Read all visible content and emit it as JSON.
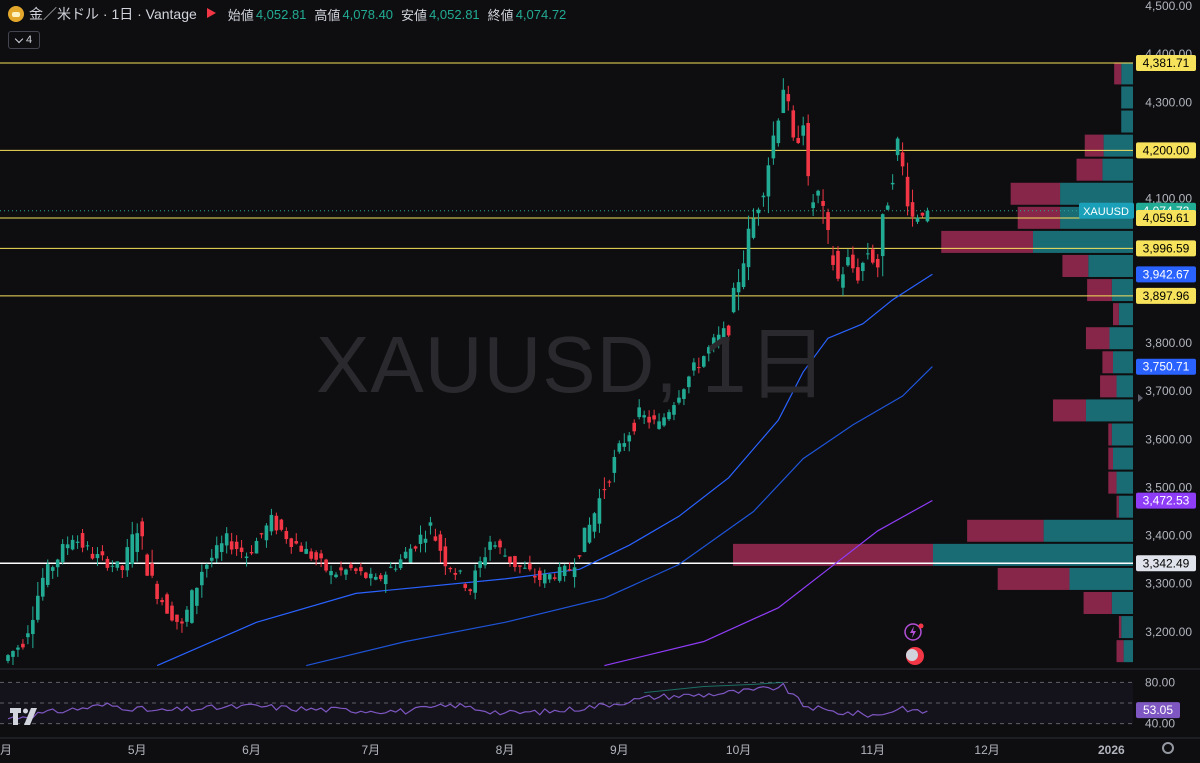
{
  "legend": {
    "title": "金／米ドル · 1日 · Vantage",
    "open_label": "始値",
    "open": "4,052.81",
    "high_label": "高値",
    "high": "4,078.40",
    "low_label": "安値",
    "low": "4,052.81",
    "close_label": "終値",
    "close": "4,074.72",
    "indicator_count": "4"
  },
  "watermark": "XAUUSD, 1日",
  "colors": {
    "up": "#22ab94",
    "down": "#f23645",
    "background": "#0e0e10",
    "hline": "#f7e25c",
    "white_line": "#ffffff",
    "ma_fast": "#2962ff",
    "ma_slow": "#8f3cf7",
    "rsi": "#7e57c2"
  },
  "chart_data": {
    "type": "candlestick",
    "symbol": "XAUUSD",
    "ylim": [
      3120,
      4500
    ],
    "y_ticks": [
      "4,500.00",
      "4,400.00",
      "4,300.00",
      "4,200.00",
      "4,100.00",
      "3,800.00",
      "3,700.00",
      "3,600.00",
      "3,500.00",
      "3,400.00",
      "3,300.00",
      "3,200.00"
    ],
    "x_ticks": [
      "月",
      "5月",
      "6月",
      "7月",
      "8月",
      "9月",
      "10月",
      "11月",
      "12月",
      "2026"
    ],
    "x_tick_index": [
      0,
      26,
      49,
      73,
      100,
      123,
      147,
      174,
      197,
      222
    ],
    "current_price_label": "XAUUSD",
    "price_labels": [
      {
        "value": 4381.71,
        "text": "4,381.71",
        "kind": "hline"
      },
      {
        "value": 4200.0,
        "text": "4,200.00",
        "kind": "hline"
      },
      {
        "value": 4074.72,
        "text": "4,074.72",
        "kind": "last"
      },
      {
        "value": 4059.61,
        "text": "4,059.61",
        "kind": "hline"
      },
      {
        "value": 3996.59,
        "text": "3,996.59",
        "kind": "hline"
      },
      {
        "value": 3942.67,
        "text": "3,942.67",
        "kind": "ma_fast"
      },
      {
        "value": 3897.96,
        "text": "3,897.96",
        "kind": "hline"
      },
      {
        "value": 3750.71,
        "text": "3,750.71",
        "kind": "ma_mid"
      },
      {
        "value": 3472.53,
        "text": "3,472.53",
        "kind": "ma_slow"
      },
      {
        "value": 3342.49,
        "text": "3,342.49",
        "kind": "white"
      }
    ],
    "anchors": [
      [
        0,
        3140
      ],
      [
        4,
        3180
      ],
      [
        8,
        3310
      ],
      [
        14,
        3400
      ],
      [
        18,
        3360
      ],
      [
        24,
        3330
      ],
      [
        27,
        3420
      ],
      [
        30,
        3300
      ],
      [
        33,
        3250
      ],
      [
        36,
        3210
      ],
      [
        40,
        3330
      ],
      [
        45,
        3390
      ],
      [
        49,
        3360
      ],
      [
        54,
        3430
      ],
      [
        58,
        3390
      ],
      [
        63,
        3350
      ],
      [
        66,
        3320
      ],
      [
        70,
        3330
      ],
      [
        75,
        3305
      ],
      [
        80,
        3350
      ],
      [
        86,
        3420
      ],
      [
        89,
        3350
      ],
      [
        94,
        3290
      ],
      [
        98,
        3390
      ],
      [
        103,
        3340
      ],
      [
        108,
        3310
      ],
      [
        114,
        3330
      ],
      [
        118,
        3420
      ],
      [
        122,
        3530
      ],
      [
        125,
        3600
      ],
      [
        128,
        3650
      ],
      [
        132,
        3630
      ],
      [
        136,
        3700
      ],
      [
        140,
        3760
      ],
      [
        143,
        3800
      ],
      [
        146,
        3830
      ],
      [
        148,
        3940
      ],
      [
        150,
        4020
      ],
      [
        153,
        4130
      ],
      [
        155,
        4230
      ],
      [
        157,
        4340
      ],
      [
        159,
        4200
      ],
      [
        161,
        4270
      ],
      [
        162,
        4080
      ],
      [
        164,
        4110
      ],
      [
        166,
        4010
      ],
      [
        168,
        3930
      ],
      [
        170,
        3970
      ],
      [
        172,
        3940
      ],
      [
        174,
        3990
      ],
      [
        176,
        3960
      ],
      [
        178,
        4110
      ],
      [
        180,
        4210
      ],
      [
        181,
        4160
      ],
      [
        183,
        4060
      ],
      [
        185,
        4074
      ]
    ],
    "moving_averages": [
      {
        "name": "ma_fast",
        "points": [
          [
            30,
            3130
          ],
          [
            50,
            3220
          ],
          [
            70,
            3280
          ],
          [
            100,
            3310
          ],
          [
            115,
            3330
          ],
          [
            125,
            3380
          ],
          [
            135,
            3440
          ],
          [
            145,
            3520
          ],
          [
            155,
            3640
          ],
          [
            160,
            3740
          ],
          [
            165,
            3810
          ],
          [
            172,
            3840
          ],
          [
            178,
            3890
          ],
          [
            186,
            3943
          ]
        ]
      },
      {
        "name": "ma_mid",
        "points": [
          [
            60,
            3130
          ],
          [
            80,
            3180
          ],
          [
            100,
            3220
          ],
          [
            120,
            3270
          ],
          [
            135,
            3340
          ],
          [
            150,
            3450
          ],
          [
            160,
            3560
          ],
          [
            170,
            3630
          ],
          [
            180,
            3690
          ],
          [
            186,
            3751
          ]
        ]
      },
      {
        "name": "ma_slow",
        "points": [
          [
            120,
            3130
          ],
          [
            140,
            3180
          ],
          [
            155,
            3250
          ],
          [
            165,
            3330
          ],
          [
            175,
            3410
          ],
          [
            186,
            3473
          ]
        ]
      }
    ],
    "volume_profile": [
      {
        "price": 4360,
        "up": 0.1,
        "down": 0.06
      },
      {
        "price": 4310,
        "up": 0.1,
        "down": 0.0
      },
      {
        "price": 4260,
        "up": 0.1,
        "down": 0.0
      },
      {
        "price": 4210,
        "up": 0.25,
        "down": 0.16
      },
      {
        "price": 4160,
        "up": 0.26,
        "down": 0.22
      },
      {
        "price": 4110,
        "up": 0.62,
        "down": 0.42
      },
      {
        "price": 4060,
        "up": 0.62,
        "down": 0.36
      },
      {
        "price": 4010,
        "up": 0.85,
        "down": 0.78
      },
      {
        "price": 3960,
        "up": 0.38,
        "down": 0.22
      },
      {
        "price": 3910,
        "up": 0.18,
        "down": 0.21
      },
      {
        "price": 3860,
        "up": 0.12,
        "down": 0.05
      },
      {
        "price": 3810,
        "up": 0.2,
        "down": 0.2
      },
      {
        "price": 3760,
        "up": 0.17,
        "down": 0.09
      },
      {
        "price": 3710,
        "up": 0.14,
        "down": 0.14
      },
      {
        "price": 3660,
        "up": 0.4,
        "down": 0.28
      },
      {
        "price": 3610,
        "up": 0.18,
        "down": 0.03
      },
      {
        "price": 3560,
        "up": 0.17,
        "down": 0.04
      },
      {
        "price": 3510,
        "up": 0.14,
        "down": 0.07
      },
      {
        "price": 3460,
        "up": 0.12,
        "down": 0.02
      },
      {
        "price": 3410,
        "up": 0.76,
        "down": 0.65
      },
      {
        "price": 3360,
        "up": 1.7,
        "down": 1.7
      },
      {
        "price": 3310,
        "up": 0.54,
        "down": 0.61
      },
      {
        "price": 3260,
        "up": 0.18,
        "down": 0.24
      },
      {
        "price": 3210,
        "up": 0.1,
        "down": 0.02
      },
      {
        "price": 3160,
        "up": 0.08,
        "down": 0.06
      }
    ],
    "rsi": {
      "levels": [
        "80.00",
        "40.00"
      ],
      "current": "53.05",
      "anchors": [
        [
          0,
          45
        ],
        [
          10,
          52
        ],
        [
          20,
          58
        ],
        [
          30,
          52
        ],
        [
          40,
          55
        ],
        [
          50,
          57
        ],
        [
          60,
          54
        ],
        [
          70,
          53
        ],
        [
          80,
          52
        ],
        [
          90,
          58
        ],
        [
          100,
          50
        ],
        [
          110,
          52
        ],
        [
          120,
          58
        ],
        [
          130,
          66
        ],
        [
          140,
          68
        ],
        [
          150,
          72
        ],
        [
          156,
          76
        ],
        [
          160,
          58
        ],
        [
          165,
          52
        ],
        [
          170,
          50
        ],
        [
          175,
          48
        ],
        [
          180,
          56
        ],
        [
          183,
          51
        ],
        [
          186,
          53
        ]
      ]
    }
  }
}
